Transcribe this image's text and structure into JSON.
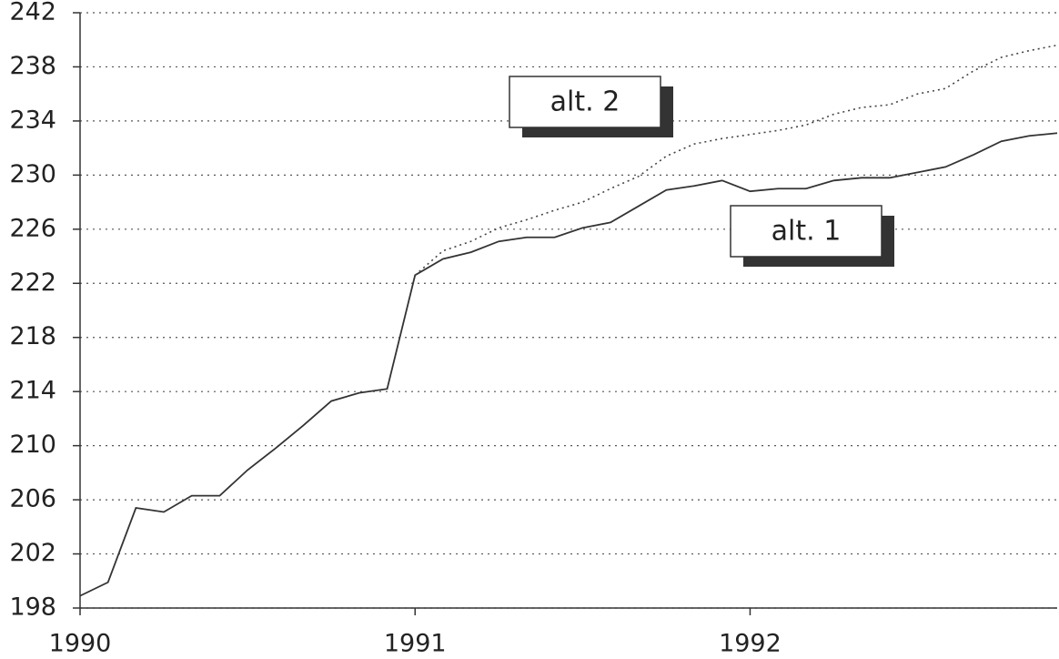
{
  "chart_data": {
    "type": "line",
    "x": [
      1990,
      1990.0833,
      1990.1667,
      1990.25,
      1990.3333,
      1990.4167,
      1990.5,
      1990.5833,
      1990.6667,
      1990.75,
      1990.8333,
      1990.9167,
      1991,
      1991.0833,
      1991.1667,
      1991.25,
      1991.3333,
      1991.4167,
      1991.5,
      1991.5833,
      1991.6667,
      1991.75,
      1991.8333,
      1991.9167,
      1992,
      1992.0833,
      1992.1667,
      1992.25,
      1992.3333,
      1992.4167,
      1992.5,
      1992.5833,
      1992.6667,
      1992.75,
      1992.8333,
      1992.9167
    ],
    "series": [
      {
        "name": "alt. 1",
        "color": "#333333",
        "dash": "solid",
        "values": [
          198.9,
          199.9,
          205.4,
          205.1,
          206.3,
          206.3,
          208.2,
          209.8,
          211.5,
          213.3,
          213.9,
          214.2,
          222.6,
          223.8,
          224.3,
          225.1,
          225.4,
          225.4,
          226.1,
          226.5,
          227.7,
          228.9,
          229.2,
          229.6,
          228.8,
          229.0,
          229.0,
          229.6,
          229.8,
          229.8,
          230.2,
          230.6,
          231.5,
          232.5,
          232.9,
          233.1
        ]
      },
      {
        "name": "alt. 2",
        "color": "#444444",
        "dash": "dotted",
        "values": [
          null,
          null,
          null,
          null,
          null,
          null,
          null,
          null,
          null,
          null,
          null,
          null,
          222.6,
          224.4,
          225.1,
          226.1,
          226.7,
          227.4,
          228.0,
          229.0,
          229.9,
          231.4,
          232.3,
          232.7,
          233.0,
          233.3,
          233.7,
          234.5,
          235.0,
          235.2,
          236.0,
          236.4,
          237.7,
          238.7,
          239.2,
          239.6
        ]
      }
    ],
    "xlim": [
      1990,
      1992.9167
    ],
    "xticks": [
      1990,
      1991,
      1992
    ],
    "ylim": [
      198,
      242
    ],
    "yticks": [
      198,
      202,
      206,
      210,
      214,
      218,
      222,
      226,
      230,
      234,
      238,
      242
    ],
    "grid": true
  }
}
